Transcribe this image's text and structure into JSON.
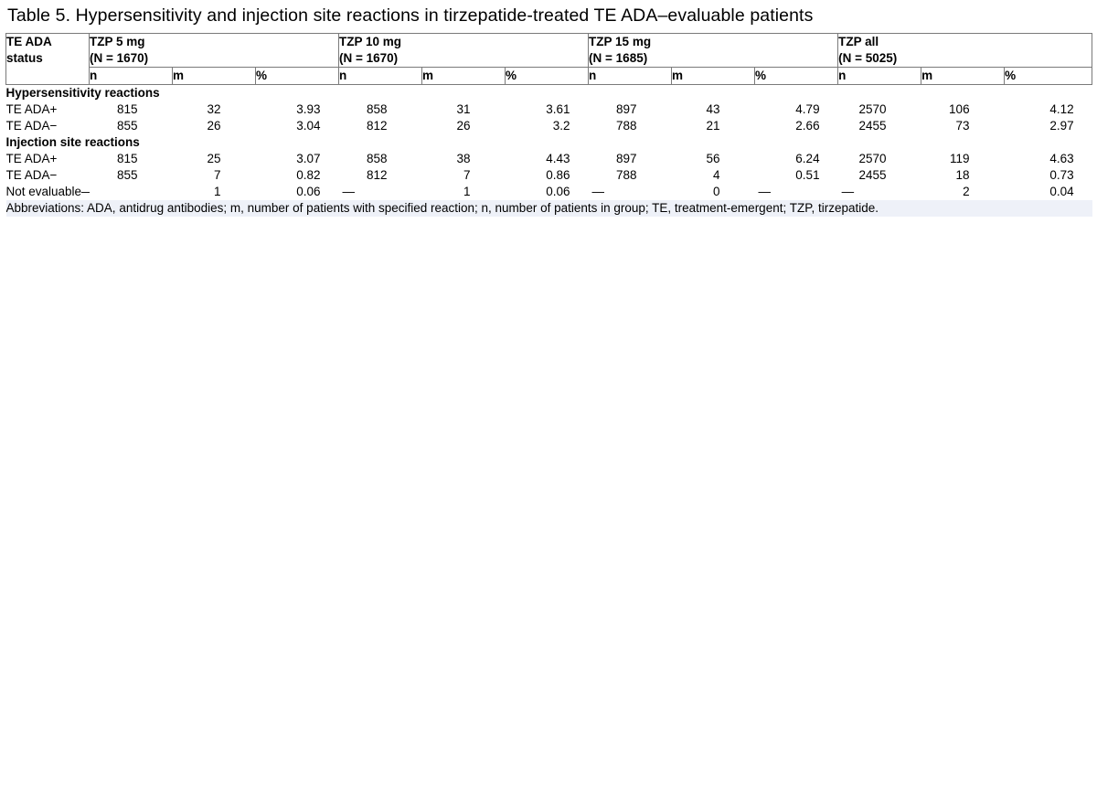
{
  "title": "Table 5. Hypersensitivity and injection site reactions in tirzepatide-treated TE ADA–evaluable patients",
  "header": {
    "status_label": [
      "TE ADA",
      "status"
    ],
    "groups": [
      {
        "name": "TZP 5 mg",
        "n": "(N = 1670)"
      },
      {
        "name": "TZP 10 mg",
        "n": "(N = 1670)"
      },
      {
        "name": "TZP 15 mg",
        "n": "(N = 1685)"
      },
      {
        "name": "TZP all",
        "n": "(N = 5025)"
      }
    ],
    "subcols": [
      "n",
      "m",
      "%"
    ]
  },
  "sections": [
    {
      "label": "Hypersensitivity reactions",
      "rows": [
        {
          "status": "TE ADA+",
          "cells": [
            "815",
            "32",
            "3.93",
            "858",
            "31",
            "3.61",
            "897",
            "43",
            "4.79",
            "2570",
            "106",
            "4.12"
          ]
        },
        {
          "status": "TE ADA−",
          "cells": [
            "855",
            "26",
            "3.04",
            "812",
            "26",
            "3.2",
            "788",
            "21",
            "2.66",
            "2455",
            "73",
            "2.97"
          ]
        }
      ]
    },
    {
      "label": "Injection site reactions",
      "rows": [
        {
          "status": "TE ADA+",
          "cells": [
            "815",
            "25",
            "3.07",
            "858",
            "38",
            "4.43",
            "897",
            "56",
            "6.24",
            "2570",
            "119",
            "4.63"
          ]
        },
        {
          "status": "TE ADA−",
          "cells": [
            "855",
            "7",
            "0.82",
            "812",
            "7",
            "0.86",
            "788",
            "4",
            "0.51",
            "2455",
            "18",
            "0.73"
          ]
        },
        {
          "status": "Not evaluable—",
          "cells": [
            "",
            "1",
            "0.06",
            "—",
            "1",
            "0.06",
            "—",
            "0",
            "—",
            "—",
            "2",
            "0.04"
          ]
        }
      ]
    }
  ],
  "footnote": "Abbreviations: ADA, antidrug antibodies; m, number of patients with specified reaction; n, number of patients in group; TE, treatment-emergent; TZP, tirzepatide."
}
